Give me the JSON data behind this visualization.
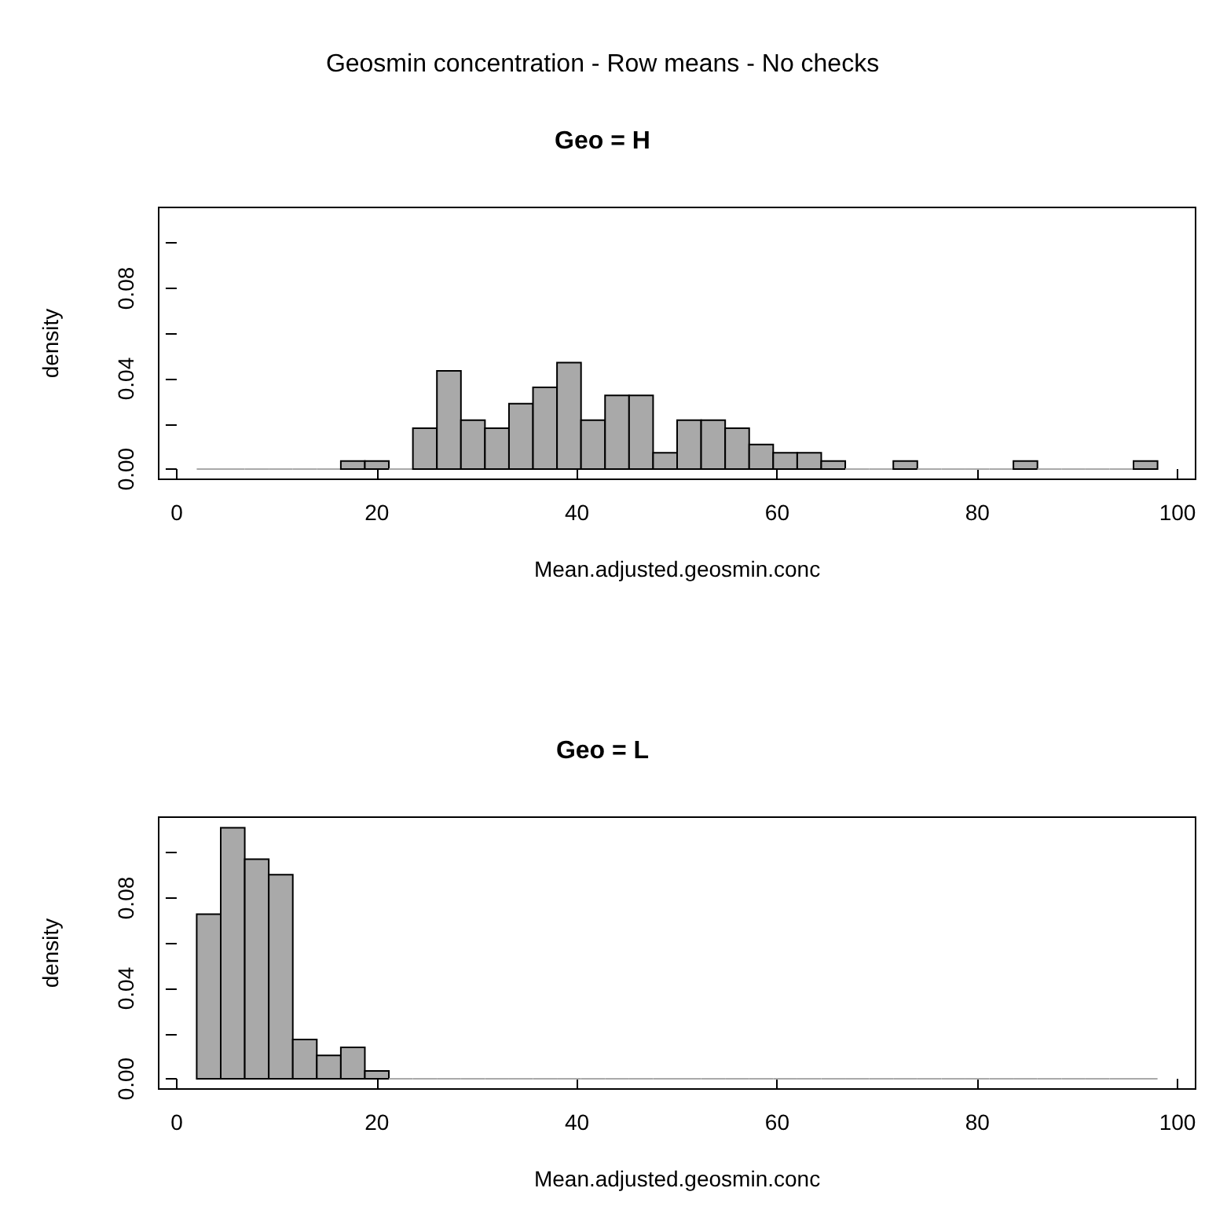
{
  "chart_data": [
    {
      "type": "histogram",
      "title": "Geo = H",
      "annotations": [
        "Geosmin concentration - Row means - No checks"
      ],
      "xlabel": "Mean.adjusted.geosmin.conc",
      "ylabel": "density",
      "color": "#a9a9a9",
      "bins": [
        2,
        4.4,
        6.8,
        9.2,
        11.6,
        14,
        16.4,
        18.8,
        21.2,
        23.6,
        26,
        28.4,
        30.8,
        33.2,
        35.6,
        38,
        40.4,
        42.8,
        45.2,
        47.6,
        50,
        52.4,
        54.8,
        57.2,
        59.6,
        62,
        64.4,
        66.8,
        69.2,
        71.6,
        74,
        76.4,
        78.8,
        81.2,
        83.6,
        86,
        88.4,
        90.8,
        93.2,
        95.6,
        98
      ],
      "values": [
        0,
        0,
        0,
        0,
        0,
        0,
        0.0036,
        0.0036,
        0,
        0.0181,
        0.0435,
        0.0217,
        0.0181,
        0.029,
        0.0362,
        0.0471,
        0.0217,
        0.0326,
        0.0326,
        0.0072,
        0.0217,
        0.0217,
        0.0181,
        0.0109,
        0.0072,
        0.0072,
        0.0036,
        0,
        0,
        0.0036,
        0,
        0,
        0,
        0,
        0.0036,
        0,
        0,
        0,
        0,
        0.0036
      ],
      "xlim": [
        -1.8,
        101.8
      ],
      "xticks": [
        0,
        20,
        40,
        60,
        80,
        100
      ],
      "ylim": [
        -0.0045,
        0.1158
      ],
      "yticks": [
        {
          "value": 0,
          "label": "0.00"
        },
        {
          "value": 0.02,
          "label": null
        },
        {
          "value": 0.04,
          "label": "0.04"
        },
        {
          "value": 0.06,
          "label": null
        },
        {
          "value": 0.08,
          "label": "0.08"
        },
        {
          "value": 0.1,
          "label": null
        }
      ],
      "grid": false
    },
    {
      "type": "histogram",
      "title": "Geo = L",
      "xlabel": "Mean.adjusted.geosmin.conc",
      "ylabel": "density",
      "color": "#a9a9a9",
      "bins": [
        2,
        4.4,
        6.8,
        9.2,
        11.6,
        14,
        16.4,
        18.8,
        21.2,
        23.6,
        26,
        28.4,
        30.8,
        33.2,
        35.6,
        38,
        40.4,
        42.8,
        45.2,
        47.6,
        50,
        52.4,
        54.8,
        57.2,
        59.6,
        62,
        64.4,
        66.8,
        69.2,
        71.6,
        74,
        76.4,
        78.8,
        81.2,
        83.6,
        86,
        88.4,
        90.8,
        93.2,
        95.6,
        98
      ],
      "values": [
        0.0729,
        0.1111,
        0.0972,
        0.0903,
        0.0174,
        0.0104,
        0.0139,
        0.0035,
        0,
        0,
        0,
        0,
        0,
        0,
        0,
        0,
        0,
        0,
        0,
        0,
        0,
        0,
        0,
        0,
        0,
        0,
        0,
        0,
        0,
        0,
        0,
        0,
        0,
        0,
        0,
        0,
        0,
        0,
        0,
        0
      ],
      "xlim": [
        -1.8,
        101.8
      ],
      "xticks": [
        0,
        20,
        40,
        60,
        80,
        100
      ],
      "ylim": [
        -0.0045,
        0.1158
      ],
      "yticks": [
        {
          "value": 0,
          "label": "0.00"
        },
        {
          "value": 0.02,
          "label": null
        },
        {
          "value": 0.04,
          "label": "0.04"
        },
        {
          "value": 0.06,
          "label": null
        },
        {
          "value": 0.08,
          "label": "0.08"
        },
        {
          "value": 0.1,
          "label": null
        }
      ],
      "grid": false
    }
  ]
}
